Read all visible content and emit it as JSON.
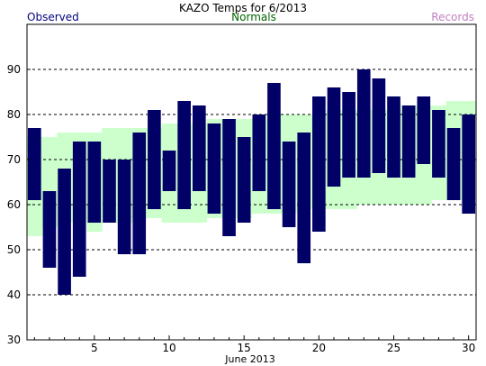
{
  "chart_data": {
    "type": "bar",
    "title": "KAZO Temps for 6/2013",
    "xlabel": "June 2013",
    "ylabel": "",
    "ylim": [
      30,
      100
    ],
    "xlim": [
      0.5,
      30.5
    ],
    "yticks": [
      30,
      40,
      50,
      60,
      70,
      80,
      90
    ],
    "xticks": [
      5,
      10,
      15,
      20,
      25,
      30
    ],
    "grid": "horizontal dashed",
    "legend": [
      {
        "label": "Observed",
        "color": "#000080",
        "position": "top-left"
      },
      {
        "label": "Normals",
        "color": "#006400",
        "position": "top-center"
      },
      {
        "label": "Records",
        "color": "#c080c0",
        "position": "top-right"
      }
    ],
    "colors": {
      "observed": "#000066",
      "normals": "#ccffcc",
      "grid": "#000000"
    },
    "days": [
      1,
      2,
      3,
      4,
      5,
      6,
      7,
      8,
      9,
      10,
      11,
      12,
      13,
      14,
      15,
      16,
      17,
      18,
      19,
      20,
      21,
      22,
      23,
      24,
      25,
      26,
      27,
      28,
      29,
      30
    ],
    "series": [
      {
        "name": "Observed",
        "high": [
          77,
          63,
          68,
          74,
          74,
          70,
          70,
          76,
          81,
          72,
          83,
          82,
          78,
          79,
          75,
          80,
          87,
          74,
          76,
          84,
          86,
          85,
          90,
          88,
          84,
          82,
          84,
          81,
          77,
          80
        ],
        "low": [
          61,
          46,
          40,
          44,
          56,
          56,
          49,
          49,
          59,
          63,
          59,
          63,
          58,
          53,
          56,
          63,
          59,
          55,
          47,
          54,
          64,
          66,
          66,
          67,
          66,
          66,
          69,
          66,
          61,
          58
        ]
      },
      {
        "name": "Normals",
        "high": [
          75,
          75,
          76,
          76,
          76,
          77,
          77,
          77,
          77,
          78,
          78,
          78,
          79,
          79,
          79,
          79,
          80,
          80,
          80,
          80,
          81,
          81,
          81,
          81,
          81,
          82,
          82,
          82,
          83,
          83
        ],
        "low": [
          53,
          55,
          56,
          56,
          54,
          56,
          56,
          57,
          57,
          56,
          56,
          56,
          57,
          57,
          57,
          58,
          58,
          58,
          59,
          59,
          59,
          59,
          60,
          60,
          60,
          60,
          60,
          61,
          61,
          61
        ]
      }
    ]
  }
}
